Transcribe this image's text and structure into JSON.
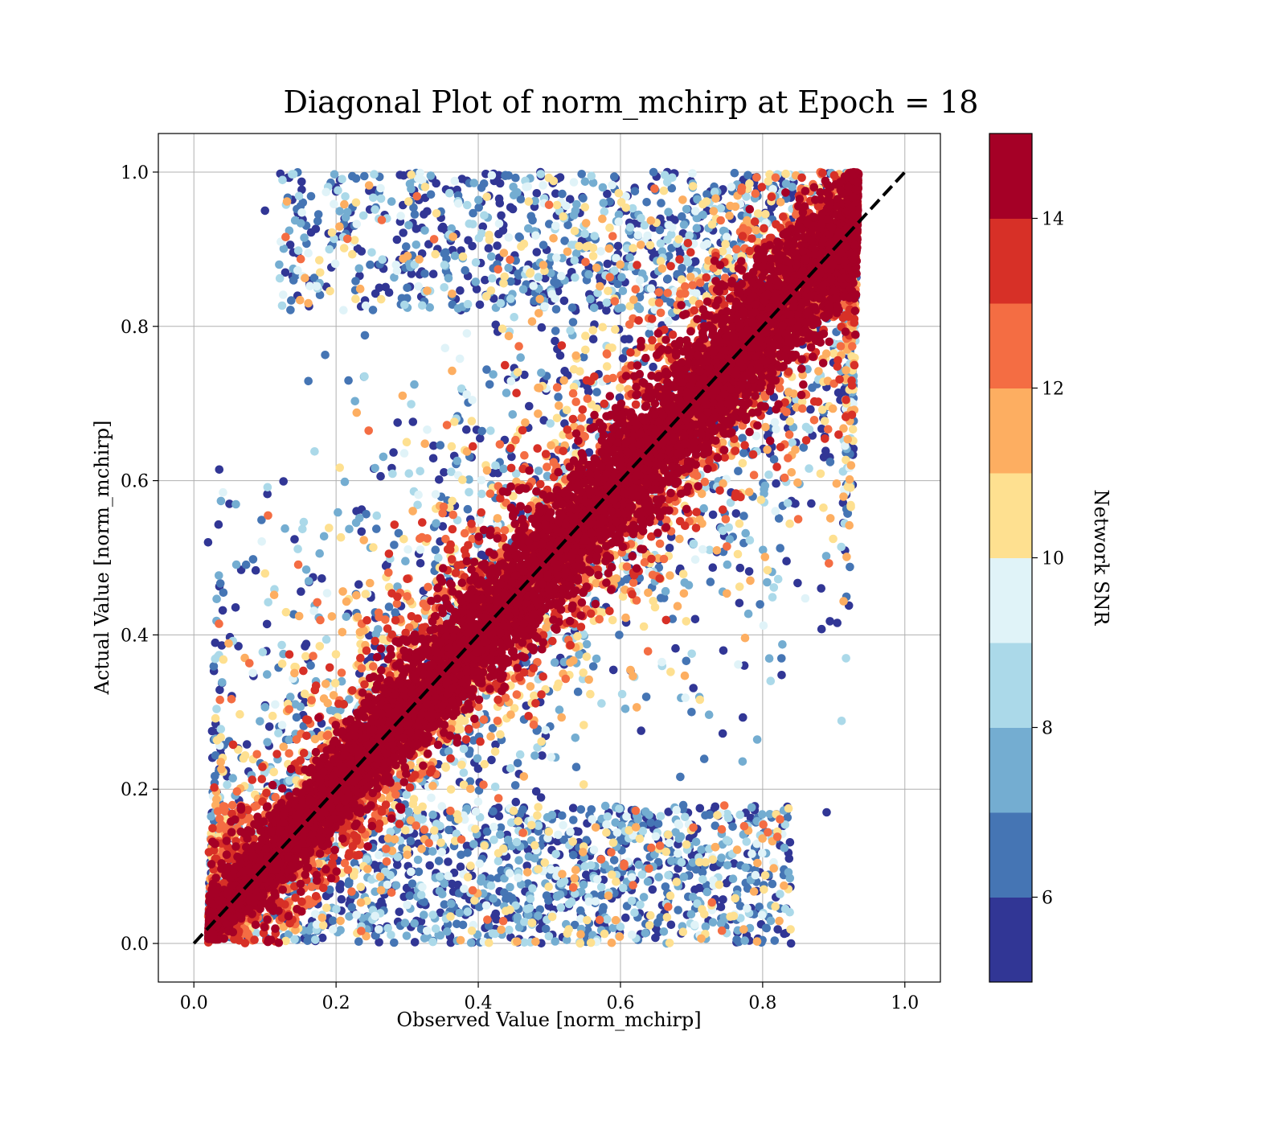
{
  "chart_data": {
    "type": "scatter",
    "title": "Diagonal Plot of norm_mchirp at Epoch = 18",
    "xlabel": "Observed Value [norm_mchirp]",
    "ylabel": "Actual Value [norm_mchirp]",
    "xlim": [
      -0.05,
      1.05
    ],
    "ylim": [
      -0.05,
      1.05
    ],
    "xticks": [
      "0.0",
      "0.2",
      "0.4",
      "0.6",
      "0.8",
      "1.0"
    ],
    "yticks": [
      "0.0",
      "0.2",
      "0.4",
      "0.6",
      "0.8",
      "1.0"
    ],
    "grid": true,
    "reference_line": {
      "style": "dashed",
      "color": "#000000",
      "from": [
        0,
        0
      ],
      "to": [
        1,
        1
      ]
    },
    "color_dimension": "Network SNR",
    "colorbar": {
      "label": "Network SNR",
      "range": [
        5,
        15
      ],
      "ticks": [
        "6",
        "8",
        "10",
        "12",
        "14"
      ],
      "tick_values": [
        6,
        8,
        10,
        12,
        14
      ],
      "levels": [
        5,
        6,
        7,
        8,
        9,
        10,
        11,
        12,
        13,
        14,
        15
      ],
      "colors": [
        "#313695",
        "#4575b4",
        "#74add1",
        "#abd9e9",
        "#e0f3f8",
        "#fee090",
        "#fdae61",
        "#f46d43",
        "#d73027",
        "#a50026"
      ]
    },
    "sampled_points": [
      {
        "x": 0.1,
        "y": 0.95,
        "snr": 5.5
      },
      {
        "x": 0.2,
        "y": 0.98,
        "snr": 5.6
      },
      {
        "x": 0.05,
        "y": 0.57,
        "snr": 5.4
      },
      {
        "x": 0.02,
        "y": 0.52,
        "snr": 5.8
      },
      {
        "x": 0.3,
        "y": 0.85,
        "snr": 6.2
      },
      {
        "x": 0.45,
        "y": 0.97,
        "snr": 7.3
      },
      {
        "x": 0.55,
        "y": 0.92,
        "snr": 8.1
      },
      {
        "x": 0.4,
        "y": 0.4,
        "snr": 14.6
      },
      {
        "x": 0.6,
        "y": 0.6,
        "snr": 14.8
      },
      {
        "x": 0.8,
        "y": 0.8,
        "snr": 14.7
      },
      {
        "x": 0.85,
        "y": 0.55,
        "snr": 12.4
      },
      {
        "x": 0.7,
        "y": 0.3,
        "snr": 6.3
      },
      {
        "x": 0.55,
        "y": 0.1,
        "snr": 8.6
      },
      {
        "x": 0.3,
        "y": 0.05,
        "snr": 9.4
      },
      {
        "x": 0.89,
        "y": 0.17,
        "snr": 5.3
      },
      {
        "x": 0.84,
        "y": 0.0,
        "snr": 5.7
      },
      {
        "x": 0.93,
        "y": 0.82,
        "snr": 14.9
      },
      {
        "x": 0.12,
        "y": 0.88,
        "snr": 7.9
      }
    ]
  }
}
